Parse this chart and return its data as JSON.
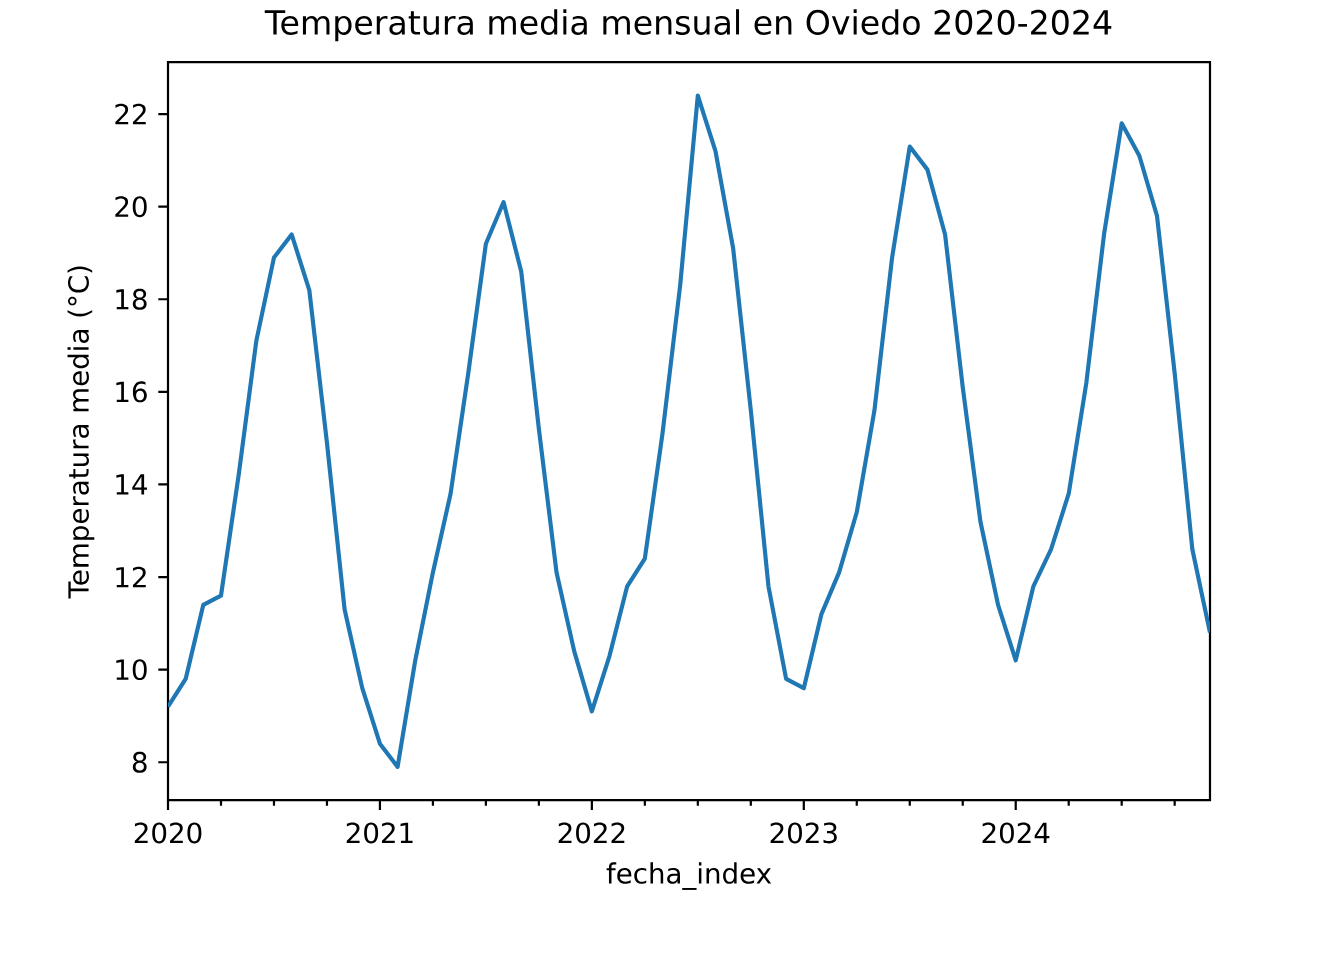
{
  "chart_data": {
    "type": "line",
    "title": "Temperatura media mensual en Oviedo 2020-2024",
    "xlabel": "fecha_index",
    "ylabel": "Temperatura media (°C)",
    "x": [
      "2020-01",
      "2020-02",
      "2020-03",
      "2020-04",
      "2020-05",
      "2020-06",
      "2020-07",
      "2020-08",
      "2020-09",
      "2020-10",
      "2020-11",
      "2020-12",
      "2021-01",
      "2021-02",
      "2021-03",
      "2021-04",
      "2021-05",
      "2021-06",
      "2021-07",
      "2021-08",
      "2021-09",
      "2021-10",
      "2021-11",
      "2021-12",
      "2022-01",
      "2022-02",
      "2022-03",
      "2022-04",
      "2022-05",
      "2022-06",
      "2022-07",
      "2022-08",
      "2022-09",
      "2022-10",
      "2022-11",
      "2022-12",
      "2023-01",
      "2023-02",
      "2023-03",
      "2023-04",
      "2023-05",
      "2023-06",
      "2023-07",
      "2023-08",
      "2023-09",
      "2023-10",
      "2023-11",
      "2023-12",
      "2024-01",
      "2024-02",
      "2024-03",
      "2024-04",
      "2024-05",
      "2024-06",
      "2024-07",
      "2024-08",
      "2024-09",
      "2024-10",
      "2024-11",
      "2024-12"
    ],
    "series": [
      {
        "color": "#1f77b4",
        "values": [
          9.2,
          9.8,
          11.4,
          11.6,
          14.2,
          17.1,
          18.9,
          19.4,
          18.2,
          14.9,
          11.3,
          9.6,
          8.4,
          7.9,
          10.2,
          12.1,
          13.8,
          16.4,
          19.2,
          20.1,
          18.6,
          15.2,
          12.1,
          10.4,
          9.1,
          10.3,
          11.8,
          12.4,
          15.1,
          18.3,
          22.4,
          21.2,
          19.1,
          15.6,
          11.8,
          9.8,
          9.6,
          11.2,
          12.1,
          13.4,
          15.6,
          18.9,
          21.3,
          20.8,
          19.4,
          16.1,
          13.2,
          11.4,
          10.2,
          11.8,
          12.6,
          13.8,
          16.2,
          19.4,
          21.8,
          21.1,
          19.8,
          16.4,
          12.6,
          10.8
        ]
      }
    ],
    "xlim": [
      "2020-01",
      "2024-12"
    ],
    "xticks": [
      {
        "value": "2020",
        "label": "2020"
      },
      {
        "value": "2020-04",
        "label": null
      },
      {
        "value": "2020-07",
        "label": null
      },
      {
        "value": "2020-10",
        "label": null
      },
      {
        "value": "2021",
        "label": "2021"
      },
      {
        "value": "2021-04",
        "label": null
      },
      {
        "value": "2021-07",
        "label": null
      },
      {
        "value": "2021-10",
        "label": null
      },
      {
        "value": "2022",
        "label": "2022"
      },
      {
        "value": "2022-04",
        "label": null
      },
      {
        "value": "2022-07",
        "label": null
      },
      {
        "value": "2022-10",
        "label": null
      },
      {
        "value": "2023",
        "label": "2023"
      },
      {
        "value": "2023-04",
        "label": null
      },
      {
        "value": "2023-07",
        "label": null
      },
      {
        "value": "2023-10",
        "label": null
      },
      {
        "value": "2024",
        "label": "2024"
      },
      {
        "value": "2024-04",
        "label": null
      },
      {
        "value": "2024-07",
        "label": null
      },
      {
        "value": "2024-10",
        "label": null
      }
    ],
    "ylim": [
      7.18,
      23.12
    ],
    "yticks": [
      8,
      10,
      12,
      14,
      16,
      18,
      20,
      22
    ]
  }
}
